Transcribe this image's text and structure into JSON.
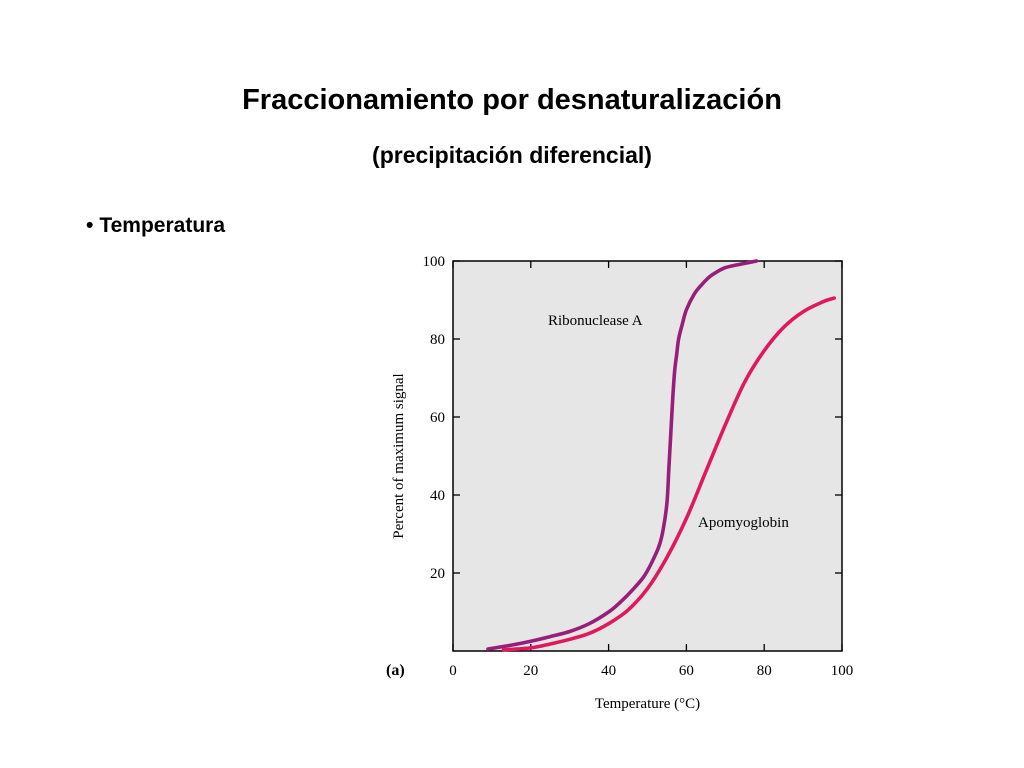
{
  "slide": {
    "title": "Fraccionamiento por desnaturalización",
    "subtitle": "(precipitación diferencial)",
    "bullet": "Temperatura",
    "bullet_marker": "•"
  },
  "chart_data": {
    "type": "line",
    "panel_label": "(a)",
    "xlabel": "Temperature (°C)",
    "ylabel": "Percent of maximum signal",
    "xlim": [
      0,
      100
    ],
    "ylim": [
      0,
      100
    ],
    "x_ticks": [
      0,
      20,
      40,
      60,
      80,
      100
    ],
    "y_ticks": [
      20,
      40,
      60,
      80,
      100
    ],
    "grid": false,
    "plot_background": "#e6e6e6",
    "series": [
      {
        "name": "Ribonuclease A",
        "color": "#991e7a",
        "x": [
          9,
          15,
          20,
          25,
          30,
          35,
          40,
          43,
          46,
          49,
          51,
          53,
          54,
          55,
          55.5,
          56,
          56.5,
          57,
          57.5,
          58,
          59,
          60,
          62,
          64,
          66,
          68,
          70,
          73,
          76,
          78
        ],
        "y": [
          0.5,
          1.5,
          2.5,
          3.7,
          5,
          7,
          10,
          12.5,
          15.5,
          19,
          22.5,
          27,
          31,
          38,
          47,
          56,
          65,
          72,
          76,
          80,
          84,
          87.5,
          91.5,
          94,
          96,
          97.3,
          98.3,
          99,
          99.6,
          100
        ]
      },
      {
        "name": "Apomyoglobin",
        "color": "#e01860",
        "x": [
          13,
          20,
          25,
          30,
          35,
          40,
          45,
          50,
          55,
          60,
          65,
          70,
          75,
          80,
          85,
          90,
          95,
          98
        ],
        "y": [
          0.3,
          0.8,
          1.8,
          3,
          4.5,
          7,
          10.5,
          16,
          24,
          34,
          46,
          58,
          69,
          77,
          83,
          87,
          89.5,
          90.5
        ]
      }
    ]
  }
}
